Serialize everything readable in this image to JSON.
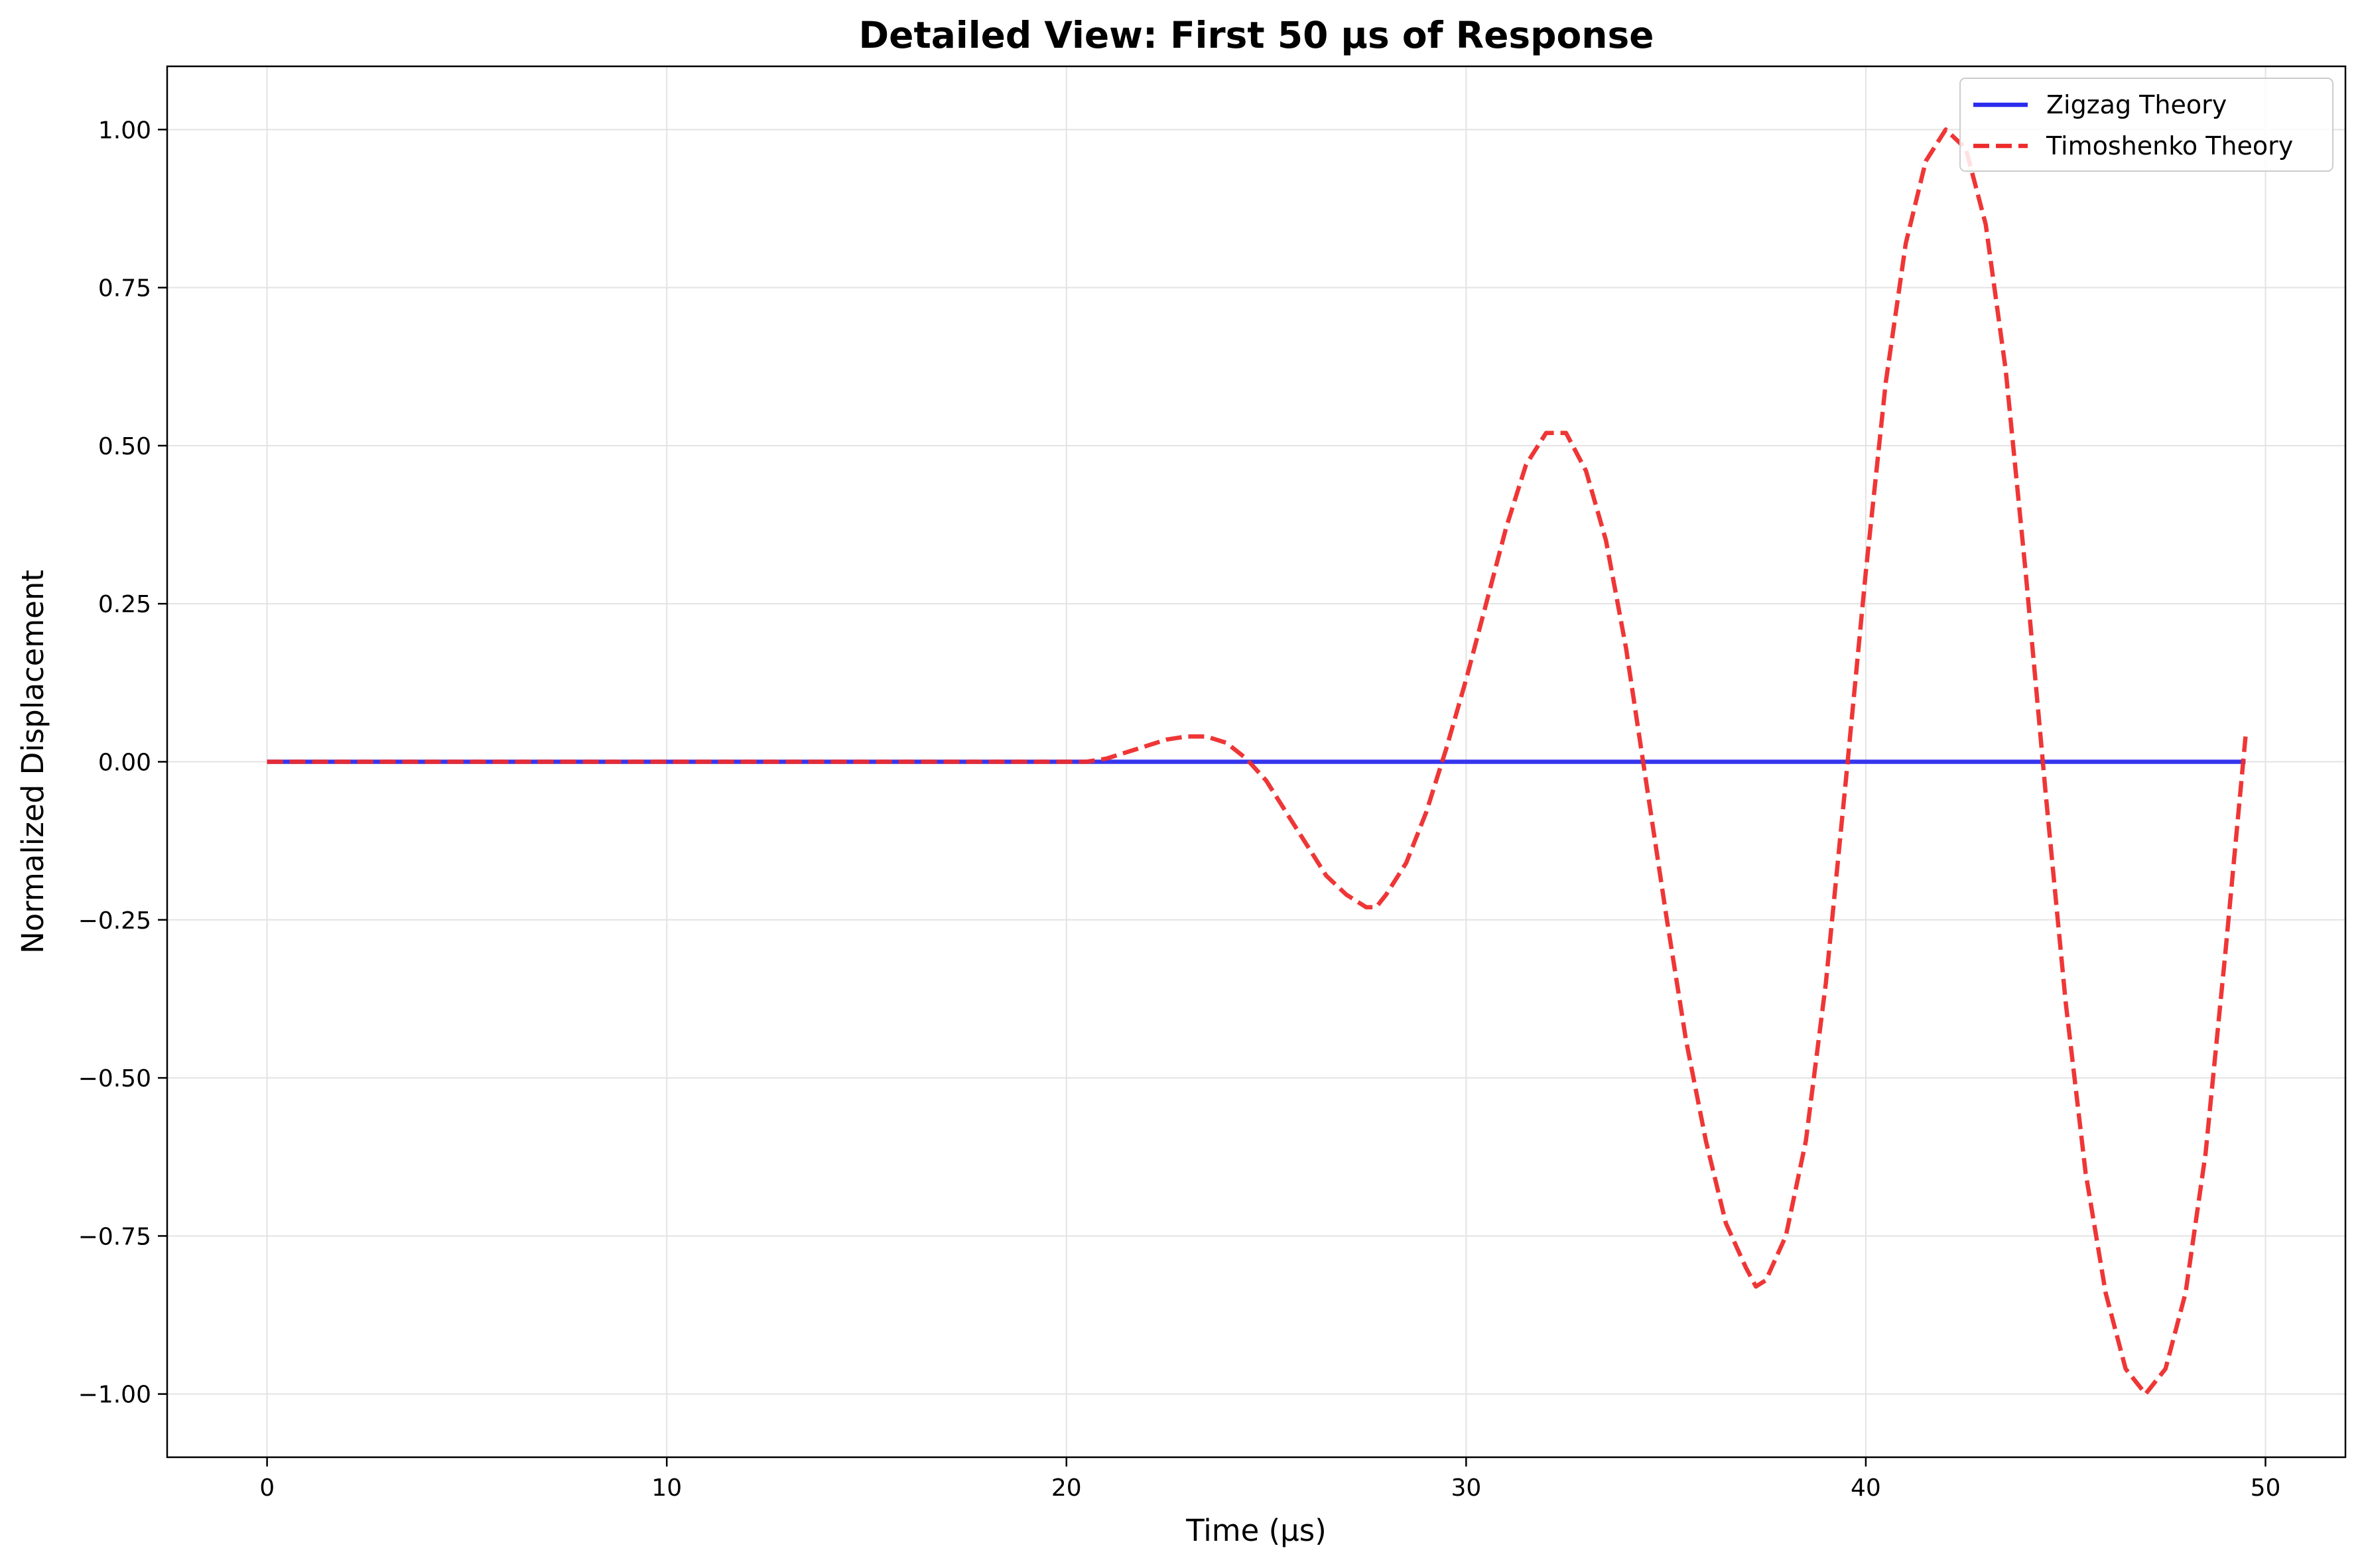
{
  "chart_data": {
    "type": "line",
    "title": "Detailed View: First 50 μs of Response",
    "xlabel": "Time (μs)",
    "ylabel": "Normalized Displacement",
    "xlim": [
      -2.5,
      52.0
    ],
    "ylim": [
      -1.1,
      1.1
    ],
    "xticks": [
      0,
      10,
      20,
      30,
      40,
      50
    ],
    "xtick_labels": [
      "0",
      "10",
      "20",
      "30",
      "40",
      "50"
    ],
    "yticks": [
      -1.0,
      -0.75,
      -0.5,
      -0.25,
      0.0,
      0.25,
      0.5,
      0.75,
      1.0
    ],
    "ytick_labels": [
      "−1.00",
      "−0.75",
      "−0.50",
      "−0.25",
      "0.00",
      "0.25",
      "0.50",
      "0.75",
      "1.00"
    ],
    "grid": true,
    "legend_position": "top-right",
    "series": [
      {
        "name": "Zigzag Theory",
        "color": "#2b2bee",
        "style": "solid",
        "x": [
          0,
          49.5
        ],
        "y": [
          0.0,
          0.0
        ]
      },
      {
        "name": "Timoshenko Theory",
        "color": "#ee2b2b",
        "style": "dashed",
        "x": [
          0,
          20.5,
          21.0,
          21.5,
          22.0,
          22.5,
          23.0,
          23.5,
          24.0,
          24.5,
          25.0,
          25.5,
          26.0,
          26.5,
          27.0,
          27.5,
          27.75,
          28.0,
          28.5,
          29.0,
          29.5,
          30.0,
          30.5,
          31.0,
          31.5,
          32.0,
          32.5,
          33.0,
          33.5,
          34.0,
          34.5,
          35.0,
          35.5,
          36.0,
          36.5,
          37.0,
          37.25,
          37.5,
          38.0,
          38.5,
          39.0,
          39.5,
          40.0,
          40.5,
          41.0,
          41.5,
          42.0,
          42.5,
          43.0,
          43.5,
          44.0,
          44.5,
          45.0,
          45.5,
          46.0,
          46.5,
          47.0,
          47.5,
          48.0,
          48.5,
          49.0,
          49.5
        ],
        "y": [
          0.0,
          0.0,
          0.005,
          0.015,
          0.025,
          0.035,
          0.04,
          0.04,
          0.03,
          0.005,
          -0.03,
          -0.08,
          -0.13,
          -0.18,
          -0.21,
          -0.23,
          -0.23,
          -0.21,
          -0.16,
          -0.08,
          0.02,
          0.13,
          0.25,
          0.37,
          0.47,
          0.52,
          0.52,
          0.46,
          0.35,
          0.18,
          -0.03,
          -0.24,
          -0.44,
          -0.6,
          -0.73,
          -0.8,
          -0.83,
          -0.82,
          -0.75,
          -0.6,
          -0.35,
          -0.03,
          0.3,
          0.6,
          0.82,
          0.95,
          1.0,
          0.97,
          0.85,
          0.62,
          0.3,
          -0.05,
          -0.38,
          -0.65,
          -0.84,
          -0.96,
          -1.0,
          -0.96,
          -0.84,
          -0.62,
          -0.3,
          0.04
        ]
      }
    ]
  }
}
